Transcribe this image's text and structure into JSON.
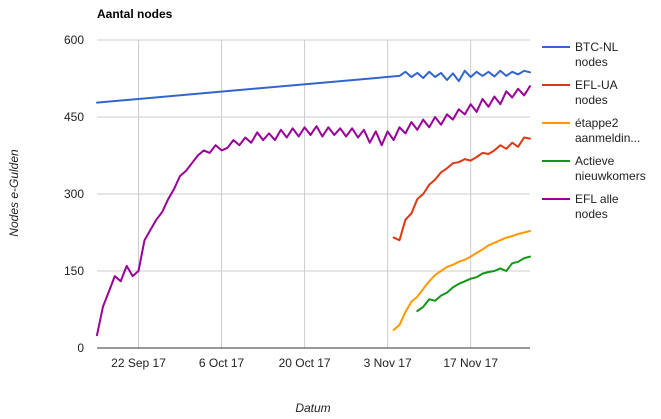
{
  "chart_data": {
    "type": "line",
    "title": "Aantal nodes",
    "xlabel": "Datum",
    "ylabel": "Nodes e-Gulden",
    "ylim": [
      0,
      600
    ],
    "yticks": [
      0,
      150,
      300,
      450,
      600
    ],
    "xlim": [
      "2017-09-15",
      "2017-11-27"
    ],
    "xticks": [
      "2017-09-22",
      "2017-10-06",
      "2017-10-20",
      "2017-11-03",
      "2017-11-17"
    ],
    "xtick_labels": [
      "22 Sep 17",
      "6 Oct 17",
      "20 Oct 17",
      "3 Nov 17",
      "17 Nov 17"
    ],
    "grid": true,
    "legend_position": "right",
    "series": [
      {
        "name": "BTC-NL nodes",
        "color": "#3366cc",
        "points": [
          [
            "2017-09-15",
            478
          ],
          [
            "2017-11-05",
            530
          ],
          [
            "2017-11-06",
            538
          ],
          [
            "2017-11-07",
            528
          ],
          [
            "2017-11-08",
            536
          ],
          [
            "2017-11-09",
            526
          ],
          [
            "2017-11-10",
            538
          ],
          [
            "2017-11-11",
            528
          ],
          [
            "2017-11-12",
            536
          ],
          [
            "2017-11-13",
            522
          ],
          [
            "2017-11-14",
            535
          ],
          [
            "2017-11-15",
            520
          ],
          [
            "2017-11-16",
            540
          ],
          [
            "2017-11-17",
            528
          ],
          [
            "2017-11-18",
            538
          ],
          [
            "2017-11-19",
            530
          ],
          [
            "2017-11-20",
            538
          ],
          [
            "2017-11-21",
            529
          ],
          [
            "2017-11-22",
            540
          ],
          [
            "2017-11-23",
            530
          ],
          [
            "2017-11-24",
            538
          ],
          [
            "2017-11-25",
            533
          ],
          [
            "2017-11-26",
            540
          ],
          [
            "2017-11-27",
            537
          ]
        ]
      },
      {
        "name": "EFL-UA nodes",
        "color": "#dc3912",
        "points": [
          [
            "2017-11-04",
            215
          ],
          [
            "2017-11-05",
            210
          ],
          [
            "2017-11-06",
            250
          ],
          [
            "2017-11-07",
            262
          ],
          [
            "2017-11-08",
            290
          ],
          [
            "2017-11-09",
            300
          ],
          [
            "2017-11-10",
            318
          ],
          [
            "2017-11-11",
            328
          ],
          [
            "2017-11-12",
            342
          ],
          [
            "2017-11-13",
            350
          ],
          [
            "2017-11-14",
            360
          ],
          [
            "2017-11-15",
            362
          ],
          [
            "2017-11-16",
            368
          ],
          [
            "2017-11-17",
            365
          ],
          [
            "2017-11-18",
            372
          ],
          [
            "2017-11-19",
            380
          ],
          [
            "2017-11-20",
            378
          ],
          [
            "2017-11-21",
            385
          ],
          [
            "2017-11-22",
            395
          ],
          [
            "2017-11-23",
            388
          ],
          [
            "2017-11-24",
            400
          ],
          [
            "2017-11-25",
            392
          ],
          [
            "2017-11-26",
            410
          ],
          [
            "2017-11-27",
            408
          ]
        ]
      },
      {
        "name": "étappe2 aanmeldin...",
        "color": "#ff9900",
        "points": [
          [
            "2017-11-04",
            35
          ],
          [
            "2017-11-05",
            45
          ],
          [
            "2017-11-06",
            70
          ],
          [
            "2017-11-07",
            90
          ],
          [
            "2017-11-08",
            100
          ],
          [
            "2017-11-09",
            115
          ],
          [
            "2017-11-10",
            130
          ],
          [
            "2017-11-11",
            142
          ],
          [
            "2017-11-12",
            150
          ],
          [
            "2017-11-13",
            158
          ],
          [
            "2017-11-14",
            162
          ],
          [
            "2017-11-15",
            168
          ],
          [
            "2017-11-16",
            172
          ],
          [
            "2017-11-17",
            178
          ],
          [
            "2017-11-18",
            185
          ],
          [
            "2017-11-19",
            192
          ],
          [
            "2017-11-20",
            200
          ],
          [
            "2017-11-21",
            205
          ],
          [
            "2017-11-22",
            210
          ],
          [
            "2017-11-23",
            215
          ],
          [
            "2017-11-24",
            218
          ],
          [
            "2017-11-25",
            222
          ],
          [
            "2017-11-26",
            225
          ],
          [
            "2017-11-27",
            228
          ]
        ]
      },
      {
        "name": "Actieve nieuwkomers",
        "color": "#109618",
        "points": [
          [
            "2017-11-08",
            72
          ],
          [
            "2017-11-09",
            80
          ],
          [
            "2017-11-10",
            95
          ],
          [
            "2017-11-11",
            92
          ],
          [
            "2017-11-12",
            102
          ],
          [
            "2017-11-13",
            108
          ],
          [
            "2017-11-14",
            118
          ],
          [
            "2017-11-15",
            125
          ],
          [
            "2017-11-16",
            130
          ],
          [
            "2017-11-17",
            135
          ],
          [
            "2017-11-18",
            138
          ],
          [
            "2017-11-19",
            145
          ],
          [
            "2017-11-20",
            148
          ],
          [
            "2017-11-21",
            150
          ],
          [
            "2017-11-22",
            155
          ],
          [
            "2017-11-23",
            150
          ],
          [
            "2017-11-24",
            165
          ],
          [
            "2017-11-25",
            168
          ],
          [
            "2017-11-26",
            175
          ],
          [
            "2017-11-27",
            178
          ]
        ]
      },
      {
        "name": "EFL alle nodes",
        "color": "#990099",
        "points": [
          [
            "2017-09-15",
            25
          ],
          [
            "2017-09-16",
            80
          ],
          [
            "2017-09-17",
            110
          ],
          [
            "2017-09-18",
            140
          ],
          [
            "2017-09-19",
            130
          ],
          [
            "2017-09-20",
            160
          ],
          [
            "2017-09-21",
            140
          ],
          [
            "2017-09-22",
            150
          ],
          [
            "2017-09-23",
            210
          ],
          [
            "2017-09-24",
            230
          ],
          [
            "2017-09-25",
            250
          ],
          [
            "2017-09-26",
            265
          ],
          [
            "2017-09-27",
            290
          ],
          [
            "2017-09-28",
            310
          ],
          [
            "2017-09-29",
            335
          ],
          [
            "2017-09-30",
            345
          ],
          [
            "2017-10-01",
            360
          ],
          [
            "2017-10-02",
            375
          ],
          [
            "2017-10-03",
            385
          ],
          [
            "2017-10-04",
            380
          ],
          [
            "2017-10-05",
            395
          ],
          [
            "2017-10-06",
            385
          ],
          [
            "2017-10-07",
            390
          ],
          [
            "2017-10-08",
            405
          ],
          [
            "2017-10-09",
            395
          ],
          [
            "2017-10-10",
            410
          ],
          [
            "2017-10-11",
            400
          ],
          [
            "2017-10-12",
            420
          ],
          [
            "2017-10-13",
            405
          ],
          [
            "2017-10-14",
            418
          ],
          [
            "2017-10-15",
            405
          ],
          [
            "2017-10-16",
            425
          ],
          [
            "2017-10-17",
            410
          ],
          [
            "2017-10-18",
            428
          ],
          [
            "2017-10-19",
            412
          ],
          [
            "2017-10-20",
            430
          ],
          [
            "2017-10-21",
            415
          ],
          [
            "2017-10-22",
            432
          ],
          [
            "2017-10-23",
            412
          ],
          [
            "2017-10-24",
            430
          ],
          [
            "2017-10-25",
            415
          ],
          [
            "2017-10-26",
            428
          ],
          [
            "2017-10-27",
            412
          ],
          [
            "2017-10-28",
            428
          ],
          [
            "2017-10-29",
            410
          ],
          [
            "2017-10-30",
            425
          ],
          [
            "2017-10-31",
            400
          ],
          [
            "2017-11-01",
            422
          ],
          [
            "2017-11-02",
            395
          ],
          [
            "2017-11-03",
            422
          ],
          [
            "2017-11-04",
            405
          ],
          [
            "2017-11-05",
            430
          ],
          [
            "2017-11-06",
            418
          ],
          [
            "2017-11-07",
            440
          ],
          [
            "2017-11-08",
            425
          ],
          [
            "2017-11-09",
            445
          ],
          [
            "2017-11-10",
            430
          ],
          [
            "2017-11-11",
            450
          ],
          [
            "2017-11-12",
            435
          ],
          [
            "2017-11-13",
            455
          ],
          [
            "2017-11-14",
            445
          ],
          [
            "2017-11-15",
            465
          ],
          [
            "2017-11-16",
            455
          ],
          [
            "2017-11-17",
            475
          ],
          [
            "2017-11-18",
            460
          ],
          [
            "2017-11-19",
            485
          ],
          [
            "2017-11-20",
            470
          ],
          [
            "2017-11-21",
            490
          ],
          [
            "2017-11-22",
            475
          ],
          [
            "2017-11-23",
            500
          ],
          [
            "2017-11-24",
            488
          ],
          [
            "2017-11-25",
            505
          ],
          [
            "2017-11-26",
            492
          ],
          [
            "2017-11-27",
            510
          ]
        ]
      }
    ]
  },
  "legend": [
    {
      "line1": "BTC-NL",
      "line2": "nodes"
    },
    {
      "line1": "EFL-UA",
      "line2": "nodes"
    },
    {
      "line1": "étappe2",
      "line2": "aanmeldin..."
    },
    {
      "line1": "Actieve",
      "line2": "nieuwkomers"
    },
    {
      "line1": "EFL alle",
      "line2": "nodes"
    }
  ]
}
